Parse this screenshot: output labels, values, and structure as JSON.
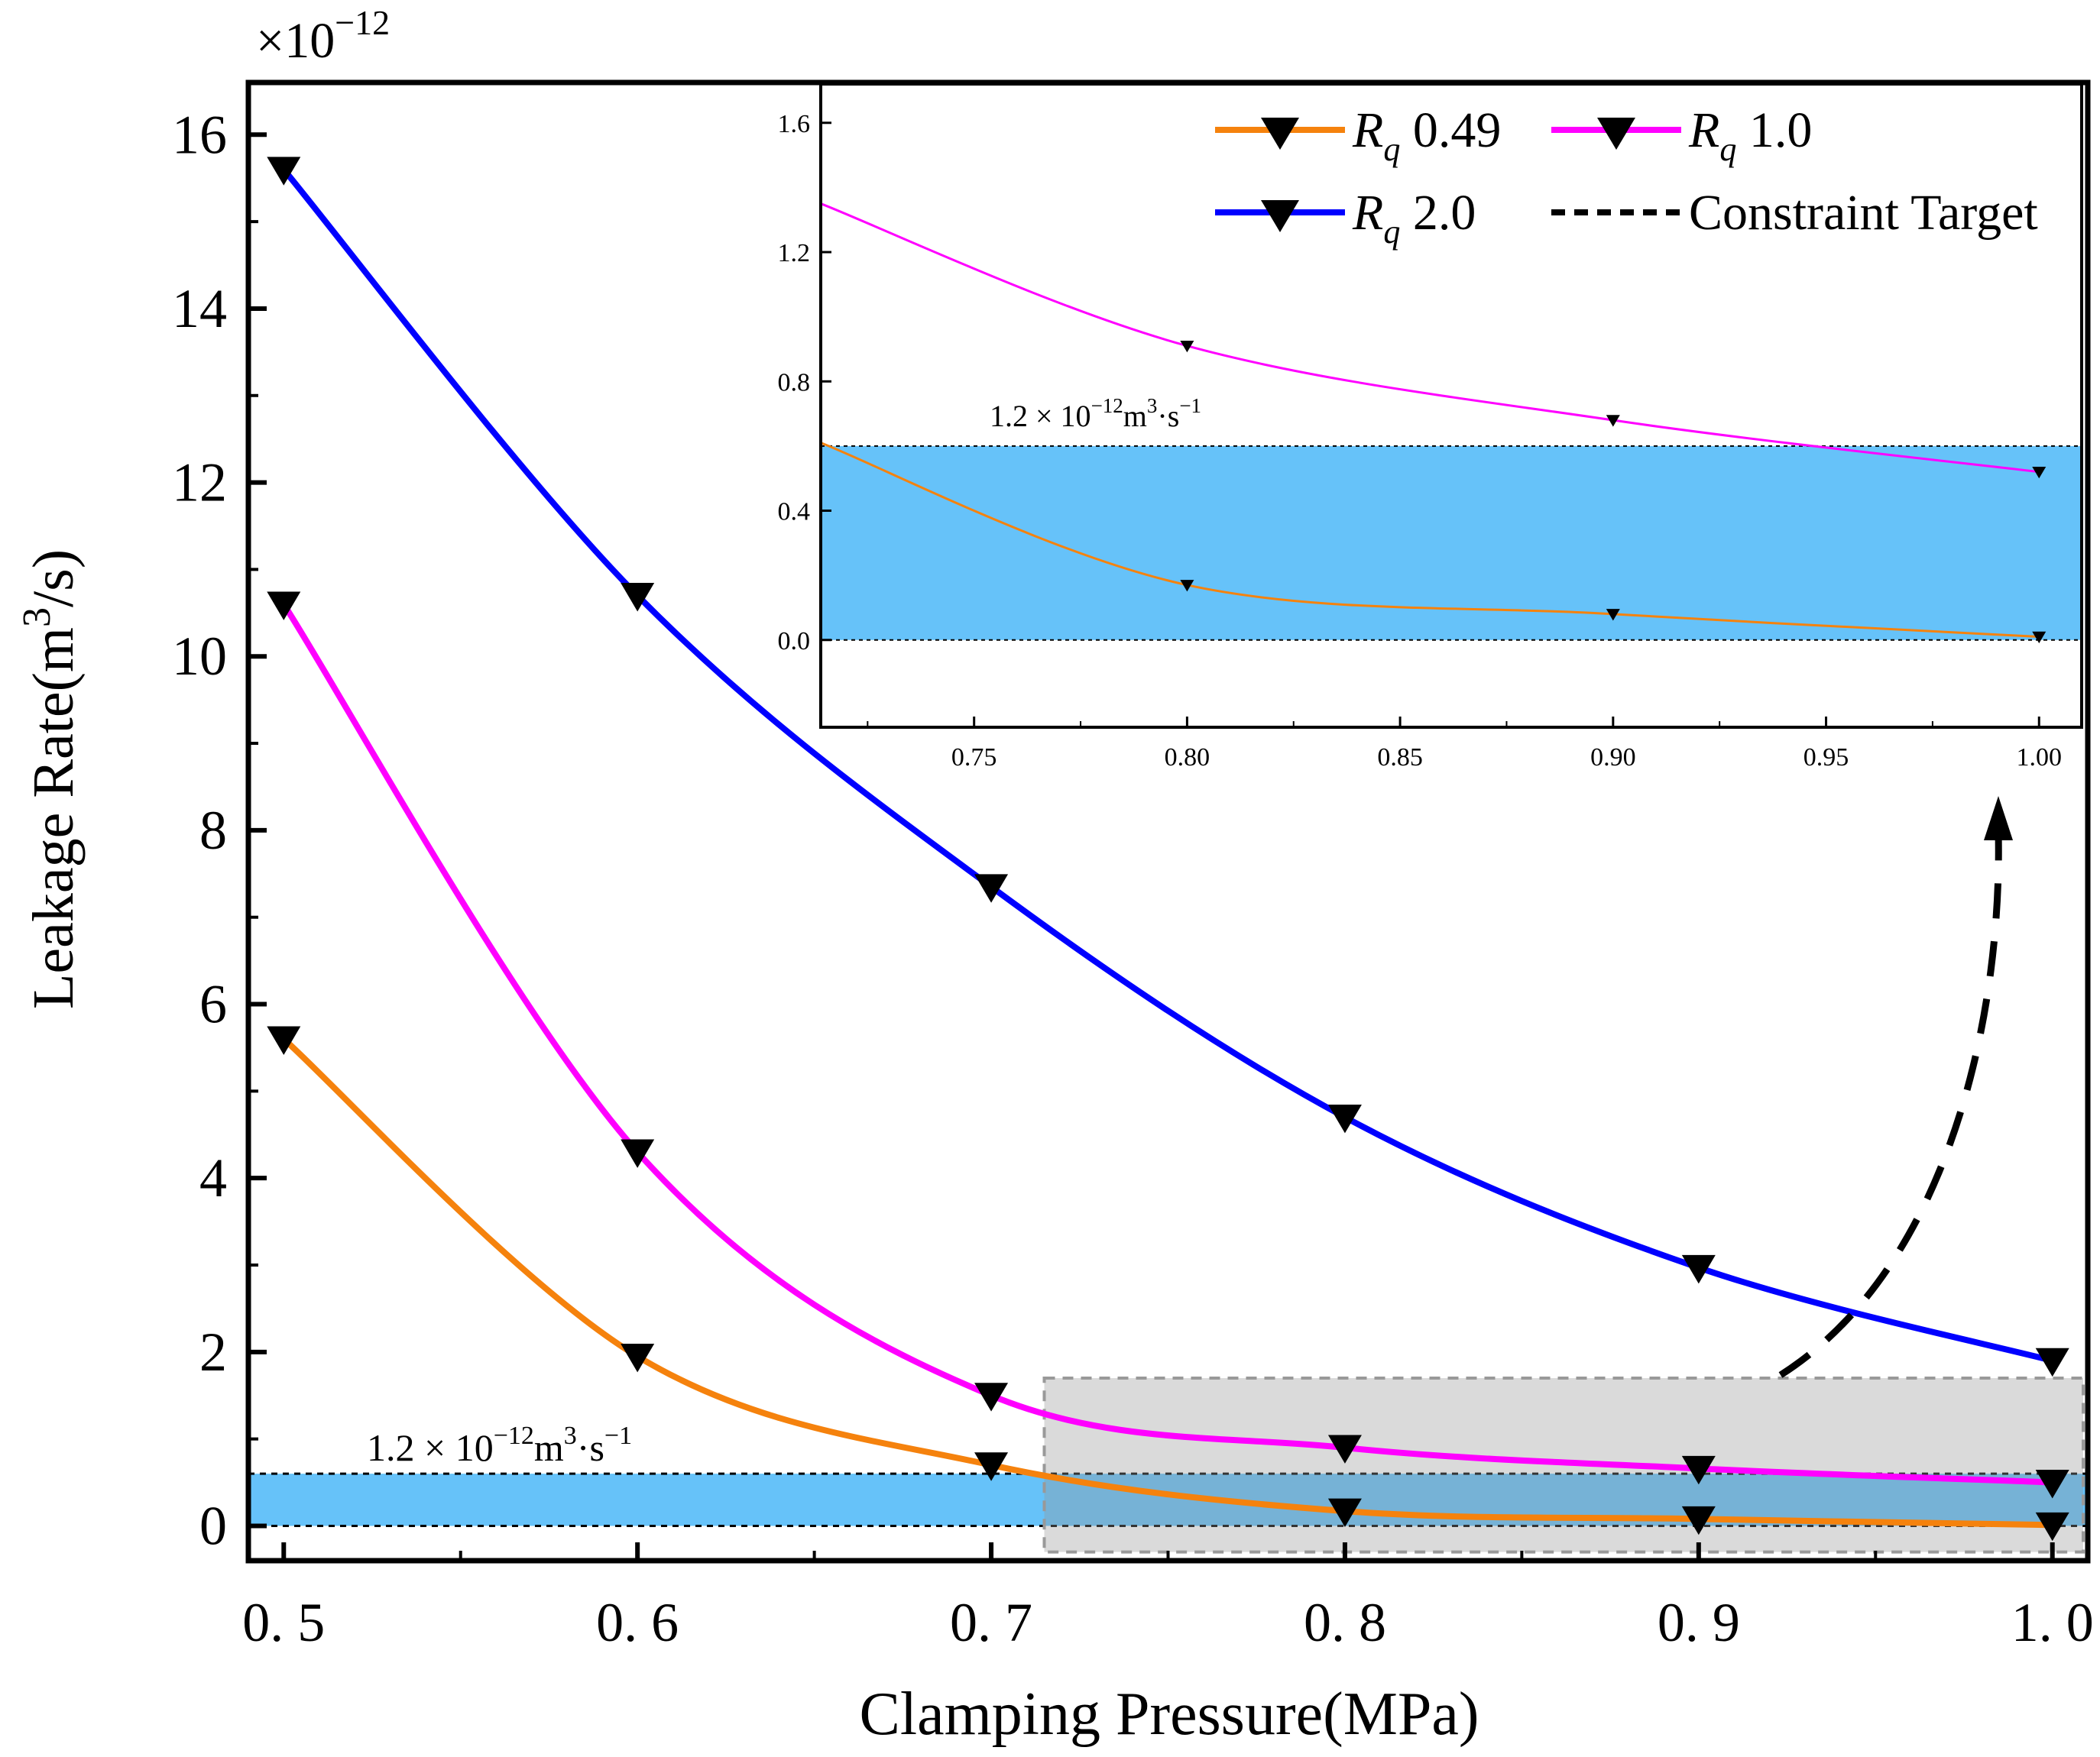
{
  "chart_data": [
    {
      "type": "line",
      "xlabel": "Clamping Pressure(MPa)",
      "ylabel_prefix": "Leakage Rate(m",
      "ylabel_sup": "3",
      "ylabel_suffix": "/s)",
      "y_multiplier": "×10",
      "y_multiplier_exp": "−12",
      "xlim": [
        0.49,
        1.01
      ],
      "ylim": [
        -0.4,
        16.6
      ],
      "x_ticks": [
        0.5,
        0.6,
        0.7,
        0.8,
        0.9,
        1.0
      ],
      "x_tick_labels": [
        "0. 5",
        "0. 6",
        "0. 7",
        "0. 8",
        "0. 9",
        "1. 0"
      ],
      "y_ticks": [
        0,
        2,
        4,
        6,
        8,
        10,
        12,
        14,
        16
      ],
      "y_tick_labels": [
        "0",
        "2",
        "4",
        "6",
        "8",
        "10",
        "12",
        "14",
        "16"
      ],
      "x": [
        0.5,
        0.6,
        0.7,
        0.8,
        0.9,
        1.0
      ],
      "series": [
        {
          "name": "Rq 0.49",
          "color": "#f5820d",
          "values": [
            5.6,
            1.95,
            0.7,
            0.17,
            0.08,
            0.01
          ]
        },
        {
          "name": "Rq 1.0",
          "color": "#ff00ff",
          "values": [
            10.6,
            4.3,
            1.5,
            0.9,
            0.66,
            0.5
          ]
        },
        {
          "name": "Rq 2.0",
          "color": "#0000ff",
          "values": [
            15.6,
            10.7,
            7.35,
            4.7,
            2.97,
            1.9
          ]
        }
      ],
      "constraint": {
        "low": 0,
        "high": 0.6,
        "label": "1.2 × 10",
        "label_exp": "−12",
        "label_unit": "m",
        "label_unit_exp": "3",
        "label_tail": "·s",
        "label_tail_exp": "−1",
        "fill": "#66c2f9"
      },
      "zoom_region": {
        "x": [
          0.715,
          1.01
        ],
        "y": [
          -0.3,
          1.7
        ]
      }
    },
    {
      "type": "line",
      "xlim": [
        0.714,
        1.01
      ],
      "ylim": [
        -0.27,
        1.72
      ],
      "x_ticks": [
        0.75,
        0.8,
        0.85,
        0.9,
        0.95,
        1.0
      ],
      "x_tick_labels": [
        "0.75",
        "0.80",
        "0.85",
        "0.90",
        "0.95",
        "1.00"
      ],
      "y_ticks": [
        0.0,
        0.4,
        0.8,
        1.2,
        1.6
      ],
      "y_tick_labels": [
        "0.0",
        "0.4",
        "0.8",
        "1.2",
        "1.6"
      ],
      "series": [
        {
          "name": "Rq 0.49",
          "color": "#f5820d",
          "x": [
            0.714,
            0.8,
            0.9,
            1.0
          ],
          "values": [
            0.61,
            0.17,
            0.08,
            0.01
          ]
        },
        {
          "name": "Rq 1.0",
          "color": "#ff00ff",
          "x": [
            0.714,
            0.8,
            0.9,
            1.0
          ],
          "values": [
            1.35,
            0.91,
            0.68,
            0.52
          ]
        }
      ],
      "markers_x": [
        0.8,
        0.9,
        1.0
      ],
      "constraint": {
        "low": 0,
        "high": 0.6
      }
    }
  ],
  "legend": {
    "items": [
      {
        "sym": "R",
        "sub": "q",
        "value": " 0.49",
        "color": "#f5820d"
      },
      {
        "sym": "R",
        "sub": "q",
        "value": " 1.0",
        "color": "#ff00ff"
      },
      {
        "sym": "R",
        "sub": "q",
        "value": " 2.0",
        "color": "#0000ff"
      },
      {
        "text": "Constraint Target",
        "color": "#000000"
      }
    ]
  }
}
